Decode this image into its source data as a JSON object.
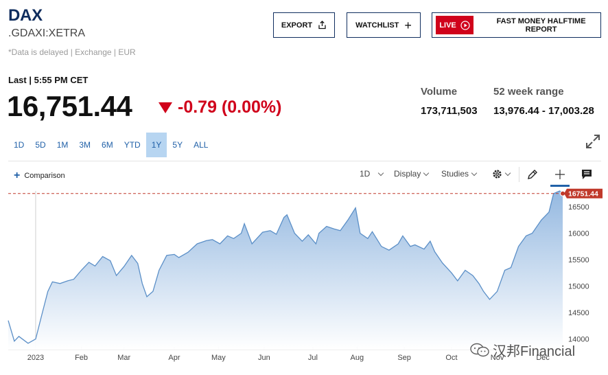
{
  "header": {
    "ticker": "DAX",
    "symbol": ".GDAXI:XETRA",
    "delayed_note": "*Data is delayed | Exchange | EUR"
  },
  "actions": {
    "export_label": "EXPORT",
    "watchlist_label": "WATCHLIST",
    "live_badge": "LIVE",
    "live_title": "FAST MONEY HALFTIME REPORT"
  },
  "quote": {
    "last_time": "Last | 5:55 PM CET",
    "price": "16,751.44",
    "change": "-0.79 (0.00%)",
    "change_color": "#d0021b"
  },
  "stats": {
    "volume_label": "Volume",
    "volume_value": "173,711,503",
    "range_label": "52 week range",
    "range_value": "13,976.44 - 17,003.28"
  },
  "ranges": [
    "1D",
    "5D",
    "1M",
    "3M",
    "6M",
    "YTD",
    "1Y",
    "5Y",
    "ALL"
  ],
  "active_range": "1Y",
  "toolbar": {
    "comparison_label": "Comparison",
    "interval_label": "1D",
    "display_label": "Display",
    "studies_label": "Studies"
  },
  "chart_data": {
    "type": "area",
    "x_tick_labels": [
      "2023",
      "Feb",
      "Mar",
      "Apr",
      "May",
      "Jun",
      "Jul",
      "Aug",
      "Sep",
      "Oct",
      "Nov",
      "Dec"
    ],
    "y_tick_labels": [
      "14000",
      "14500",
      "15000",
      "15500",
      "16000",
      "16500"
    ],
    "ylim": [
      13800,
      16800
    ],
    "last_value_label": "16751.44",
    "last_value": 16751.44,
    "line_color": "#5b8fc7",
    "fill_top_color": "#8fb5df",
    "last_marker_color": "#c0392b",
    "grid": false,
    "series": [
      {
        "x": [
          "2022-12-15",
          "2022-12-19",
          "2022-12-22",
          "2022-12-28",
          "2023-01-02",
          "2023-01-06",
          "2023-01-10",
          "2023-01-13",
          "2023-01-18",
          "2023-01-23",
          "2023-01-27",
          "2023-02-01",
          "2023-02-06",
          "2023-02-10",
          "2023-02-15",
          "2023-02-20",
          "2023-02-24",
          "2023-03-01",
          "2023-03-06",
          "2023-03-10",
          "2023-03-13",
          "2023-03-16",
          "2023-03-20",
          "2023-03-24",
          "2023-03-29",
          "2023-04-03",
          "2023-04-06",
          "2023-04-12",
          "2023-04-18",
          "2023-04-24",
          "2023-04-28",
          "2023-05-03",
          "2023-05-08",
          "2023-05-12",
          "2023-05-17",
          "2023-05-19",
          "2023-05-24",
          "2023-05-31",
          "2023-06-05",
          "2023-06-09",
          "2023-06-14",
          "2023-06-16",
          "2023-06-21",
          "2023-06-26",
          "2023-06-30",
          "2023-07-05",
          "2023-07-07",
          "2023-07-12",
          "2023-07-17",
          "2023-07-21",
          "2023-07-26",
          "2023-07-31",
          "2023-08-03",
          "2023-08-08",
          "2023-08-11",
          "2023-08-17",
          "2023-08-22",
          "2023-08-28",
          "2023-08-31",
          "2023-09-05",
          "2023-09-08",
          "2023-09-14",
          "2023-09-18",
          "2023-09-21",
          "2023-09-26",
          "2023-10-02",
          "2023-10-06",
          "2023-10-11",
          "2023-10-16",
          "2023-10-20",
          "2023-10-23",
          "2023-10-27",
          "2023-11-01",
          "2023-11-06",
          "2023-11-10",
          "2023-11-15",
          "2023-11-20",
          "2023-11-24",
          "2023-11-30",
          "2023-12-05",
          "2023-12-08",
          "2023-12-12",
          "2023-12-14"
        ],
        "y": [
          14350,
          13960,
          14050,
          13920,
          14000,
          14450,
          14900,
          15080,
          15050,
          15100,
          15130,
          15300,
          15450,
          15380,
          15560,
          15480,
          15200,
          15370,
          15580,
          15430,
          15050,
          14800,
          14900,
          15300,
          15580,
          15600,
          15540,
          15640,
          15800,
          15860,
          15880,
          15800,
          15950,
          15900,
          16000,
          16180,
          15800,
          16020,
          16050,
          15980,
          16300,
          16350,
          16000,
          15850,
          15970,
          15800,
          16000,
          16130,
          16080,
          16050,
          16250,
          16480,
          16000,
          15900,
          16030,
          15750,
          15680,
          15800,
          15950,
          15750,
          15780,
          15700,
          15850,
          15650,
          15440,
          15250,
          15100,
          15300,
          15200,
          15050,
          14900,
          14750,
          14900,
          15300,
          15350,
          15750,
          15950,
          16000,
          16250,
          16400,
          16750,
          16800,
          16751.44
        ]
      }
    ]
  },
  "watermark": "汉邦Financial"
}
